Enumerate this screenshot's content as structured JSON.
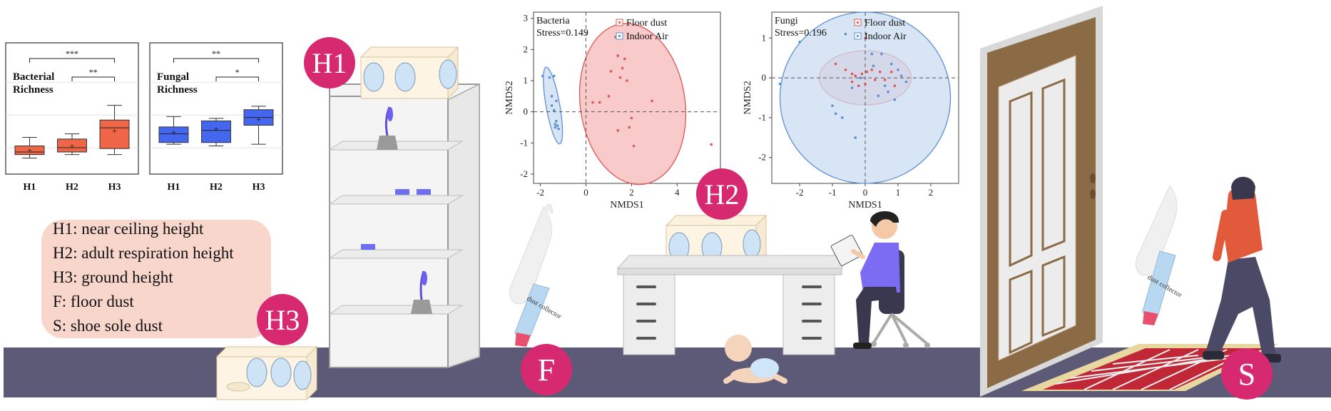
{
  "colors": {
    "floor": "#5d5a78",
    "bubble": "#d6296f",
    "legend_bg": "#f8d6cc",
    "box_h12": "#ee6548",
    "box_h3": "#ee6548",
    "fungal_box": "#4566ee",
    "red_ellipse": "#f5b8b8",
    "blue_ellipse": "#c9dcf2",
    "door_wood": "#8b6a46",
    "jacket": "#e25a3c",
    "shirt": "#7b6cf3"
  },
  "bubbles": {
    "h1": "H1",
    "h2": "H2",
    "h3": "H3",
    "f": "F",
    "s": "S"
  },
  "legend": [
    "H1: near ceiling height",
    "H2: adult respiration height",
    "H3: ground height",
    "F: floor dust",
    "S: shoe sole dust"
  ],
  "vacuum_label": "dust collector",
  "chart_data": [
    {
      "type": "box",
      "title": "Bacterial Richness",
      "categories": [
        "H1",
        "H2",
        "H3"
      ],
      "boxes": [
        {
          "min": 0.12,
          "q1": 0.16,
          "median": 0.19,
          "q3": 0.26,
          "max": 0.36,
          "mean": 0.21
        },
        {
          "min": 0.16,
          "q1": 0.19,
          "median": 0.24,
          "q3": 0.34,
          "max": 0.4,
          "mean": 0.26
        },
        {
          "min": 0.16,
          "q1": 0.23,
          "median": 0.47,
          "q3": 0.56,
          "max": 0.73,
          "mean": 0.44
        }
      ],
      "colors": [
        "#ee6548",
        "#ee6548",
        "#ee6548"
      ],
      "significance": [
        {
          "from": "H1",
          "to": "H3",
          "label": "***"
        },
        {
          "from": "H2",
          "to": "H3",
          "label": "**"
        }
      ]
    },
    {
      "type": "box",
      "title": "Fungal Richness",
      "categories": [
        "H1",
        "H2",
        "H3"
      ],
      "boxes": [
        {
          "min": 0.28,
          "q1": 0.3,
          "median": 0.4,
          "q3": 0.48,
          "max": 0.6,
          "mean": 0.42
        },
        {
          "min": 0.26,
          "q1": 0.3,
          "median": 0.44,
          "q3": 0.55,
          "max": 0.58,
          "mean": 0.46
        },
        {
          "min": 0.28,
          "q1": 0.5,
          "median": 0.59,
          "q3": 0.68,
          "max": 0.72,
          "mean": 0.57
        }
      ],
      "colors": [
        "#4566ee",
        "#4566ee",
        "#4566ee"
      ],
      "significance": [
        {
          "from": "H1",
          "to": "H3",
          "label": "**"
        },
        {
          "from": "H2",
          "to": "H3",
          "label": "*"
        }
      ]
    },
    {
      "type": "scatter",
      "title": "Bacteria",
      "stress": "Stress=0.149",
      "xlabel": "NMDS1",
      "ylabel": "NMDS2",
      "xlim": [
        -2.3,
        5.9
      ],
      "ylim": [
        -2.3,
        3.2
      ],
      "xticks": [
        -2,
        0,
        2,
        4
      ],
      "yticks": [
        -2,
        -1,
        0,
        1,
        2,
        3
      ],
      "series": [
        {
          "name": "Floor dust",
          "color": "#e05656",
          "points": [
            [
              0.3,
              0.3
            ],
            [
              0.6,
              0.3
            ],
            [
              1.0,
              0.5
            ],
            [
              1.1,
              1.3
            ],
            [
              1.3,
              2.4
            ],
            [
              1.4,
              1.8
            ],
            [
              1.5,
              1.1
            ],
            [
              1.6,
              1.4
            ],
            [
              1.7,
              1.7
            ],
            [
              1.8,
              1.0
            ],
            [
              2.0,
              -0.2
            ],
            [
              1.4,
              -0.6
            ],
            [
              1.9,
              -0.5
            ],
            [
              2.1,
              -1.1
            ],
            [
              2.9,
              0.35
            ],
            [
              5.5,
              -1.05
            ]
          ],
          "ellipse": {
            "cx": 2.05,
            "cy": 0.25,
            "rx": 2.3,
            "ry": 2.6,
            "angle": -8
          }
        },
        {
          "name": "Indoor Air",
          "color": "#5b8fd6",
          "points": [
            [
              -1.9,
              1.15
            ],
            [
              -1.6,
              1.1
            ],
            [
              -1.4,
              1.15
            ],
            [
              -1.5,
              0.5
            ],
            [
              -1.3,
              0.35
            ],
            [
              -1.5,
              0.2
            ],
            [
              -1.4,
              0.05
            ],
            [
              -1.3,
              -0.3
            ],
            [
              -1.25,
              -0.45
            ],
            [
              -1.35,
              -0.5
            ],
            [
              -1.2,
              -0.55
            ],
            [
              -1.35,
              -0.4
            ]
          ],
          "ellipse": {
            "cx": -1.45,
            "cy": 0.2,
            "rx": 0.3,
            "ry": 1.25,
            "angle": -10
          }
        }
      ]
    },
    {
      "type": "scatter",
      "title": "Fungi",
      "stress": "Stress=0.196",
      "xlabel": "NMDS1",
      "ylabel": "NMDS2",
      "xlim": [
        -2.85,
        2.85
      ],
      "ylim": [
        -2.65,
        1.65
      ],
      "xticks": [
        -2,
        -1,
        0,
        1,
        2
      ],
      "yticks": [
        -2,
        -1,
        0,
        1
      ],
      "series": [
        {
          "name": "Floor dust",
          "color": "#e05656",
          "points": [
            [
              -0.9,
              0.35
            ],
            [
              -0.6,
              0.2
            ],
            [
              -0.4,
              -0.1
            ],
            [
              -0.3,
              0.05
            ],
            [
              -0.2,
              -0.2
            ],
            [
              -0.1,
              0.1
            ],
            [
              0.0,
              -0.15
            ],
            [
              0.05,
              0.15
            ],
            [
              0.0,
              1.0
            ],
            [
              0.2,
              0.2
            ],
            [
              0.3,
              -0.05
            ],
            [
              0.45,
              0.15
            ],
            [
              0.6,
              -0.05
            ],
            [
              0.8,
              0.15
            ],
            [
              0.9,
              -0.2
            ],
            [
              -0.4,
              0.1
            ]
          ],
          "ellipse": {
            "cx": 0.0,
            "cy": 0.0,
            "rx": 1.4,
            "ry": 0.68,
            "angle": 0
          }
        },
        {
          "name": "Indoor Air",
          "color": "#5b8fd6",
          "points": [
            [
              -2.6,
              -0.15
            ],
            [
              -2.0,
              0.9
            ],
            [
              -1.0,
              -0.7
            ],
            [
              -0.9,
              -0.9
            ],
            [
              -0.7,
              -1.0
            ],
            [
              -0.6,
              1.1
            ],
            [
              -0.4,
              -0.25
            ],
            [
              -0.3,
              -1.5
            ],
            [
              0.2,
              0.6
            ],
            [
              0.25,
              0.3
            ],
            [
              0.5,
              0.6
            ],
            [
              0.6,
              -0.2
            ],
            [
              0.8,
              0.35
            ],
            [
              0.9,
              -0.55
            ],
            [
              1.0,
              0.2
            ],
            [
              1.1,
              0.05
            ],
            [
              1.25,
              -0.1
            ],
            [
              0.7,
              -0.35
            ],
            [
              -0.15,
              0.0
            ],
            [
              0.4,
              -0.45
            ]
          ],
          "ellipse": {
            "cx": 0.0,
            "cy": -0.5,
            "rx": 2.6,
            "ry": 2.15,
            "angle": 0
          }
        }
      ]
    }
  ]
}
